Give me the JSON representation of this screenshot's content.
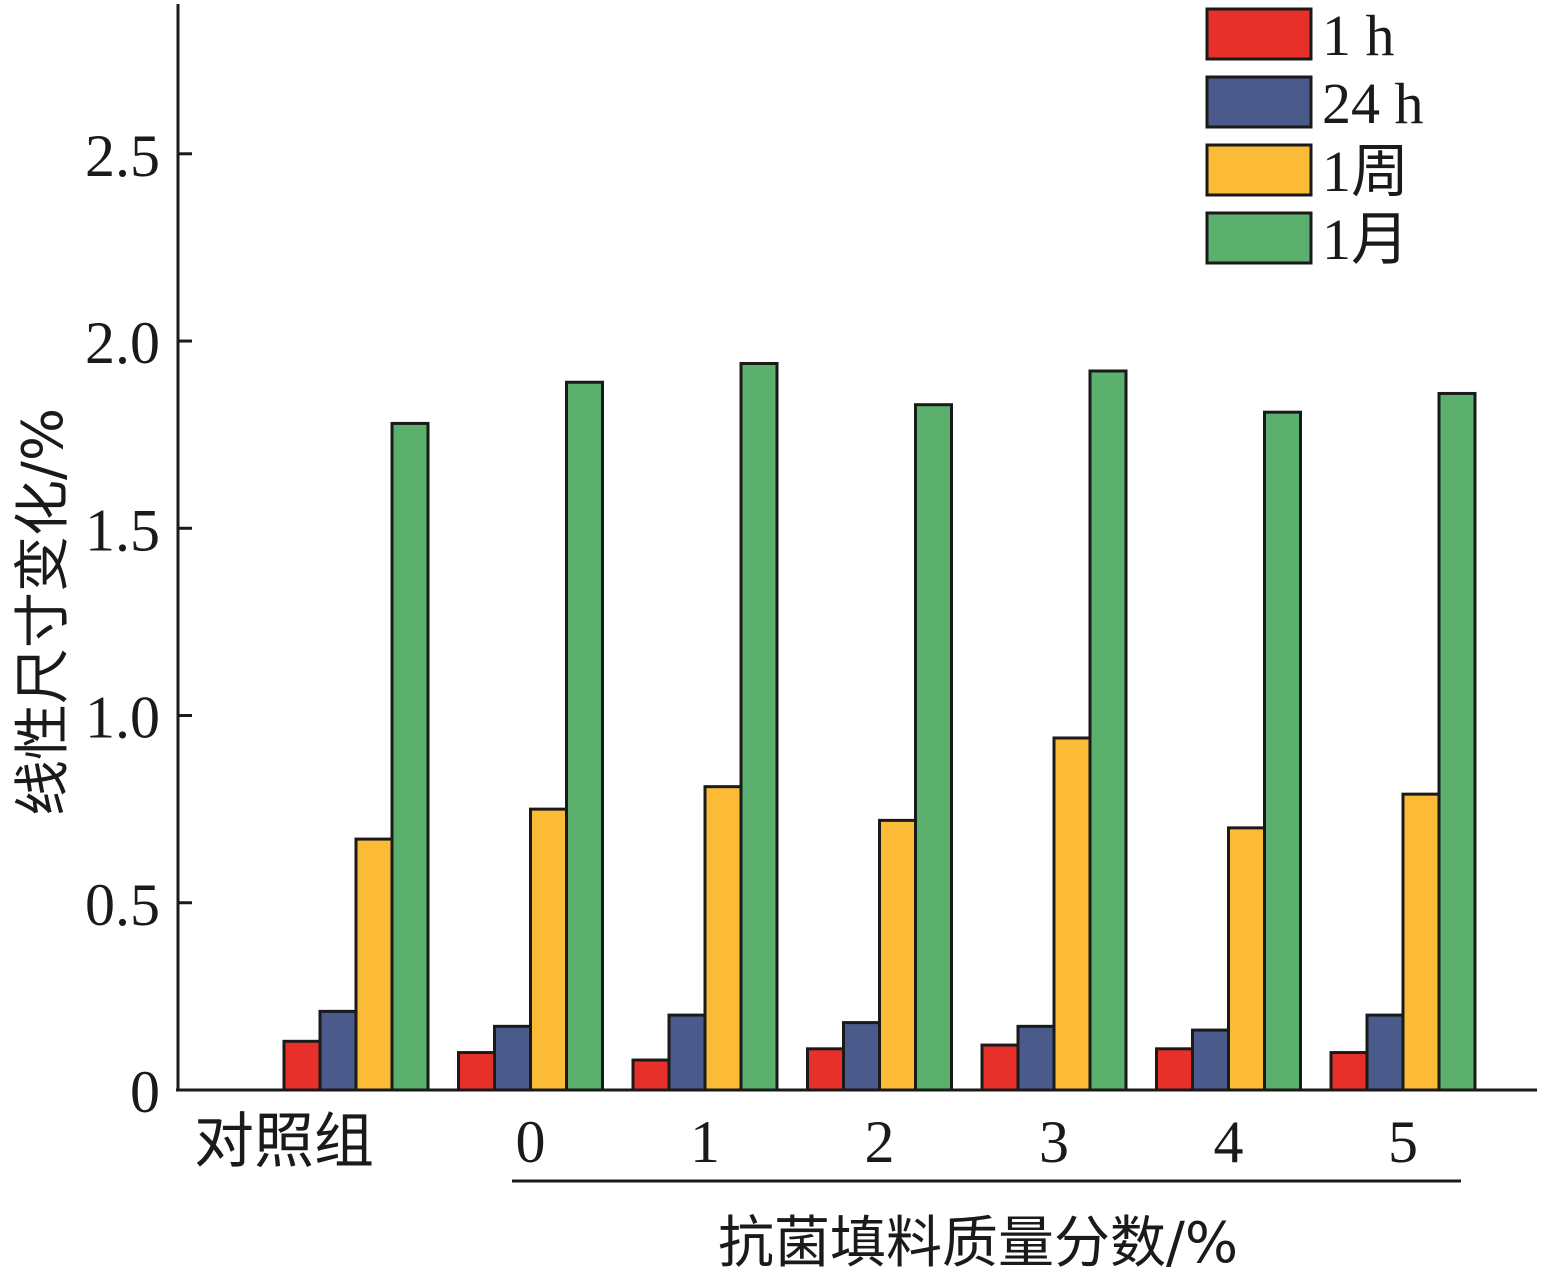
{
  "chart_data": {
    "type": "bar",
    "categories": [
      "对照组",
      "0",
      "1",
      "2",
      "3",
      "4",
      "5"
    ],
    "series": [
      {
        "name": "1 h",
        "color": "#e8302a",
        "values": [
          0.13,
          0.1,
          0.08,
          0.11,
          0.12,
          0.11,
          0.1
        ]
      },
      {
        "name": "24 h",
        "color": "#4a5a8a",
        "values": [
          0.21,
          0.17,
          0.2,
          0.18,
          0.17,
          0.16,
          0.2
        ]
      },
      {
        "name": "1周",
        "color": "#fbbb37",
        "values": [
          0.67,
          0.75,
          0.81,
          0.72,
          0.94,
          0.7,
          0.79
        ]
      },
      {
        "name": "1月",
        "color": "#5ab06c",
        "values": [
          1.78,
          1.89,
          1.94,
          1.83,
          1.92,
          1.81,
          1.86
        ]
      }
    ],
    "yticks": [
      "0",
      "0.5",
      "1.0",
      "1.5",
      "2.0",
      "2.5"
    ],
    "ytick_values": [
      0,
      0.5,
      1.0,
      1.5,
      2.0,
      2.5
    ],
    "ylim": [
      0,
      2.9
    ],
    "ylabel": "线性尺寸变化/%",
    "xlabel": "抗菌填料质量分数/%",
    "legend_position": "top-right",
    "grid": false
  }
}
